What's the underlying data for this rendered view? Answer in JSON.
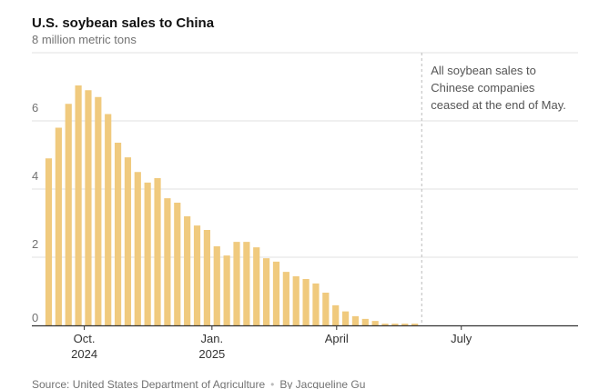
{
  "chart_data": {
    "type": "bar",
    "title": "U.S. soybean sales to China",
    "ylabel": "million metric tons",
    "ylim": [
      0,
      8
    ],
    "yticks": [
      {
        "value": 0,
        "label": "0"
      },
      {
        "value": 2,
        "label": "2"
      },
      {
        "value": 4,
        "label": "4"
      },
      {
        "value": 6,
        "label": "6"
      },
      {
        "value": 8,
        "label": "8 million metric tons"
      }
    ],
    "x_unit": "week index",
    "xlim": [
      -1.7,
      53.5
    ],
    "xticks": [
      {
        "value": 3.6,
        "label": [
          "Oct.",
          "2024"
        ]
      },
      {
        "value": 16.5,
        "label": [
          "Jan.",
          "2025"
        ]
      },
      {
        "value": 29.1,
        "label": [
          "April"
        ]
      },
      {
        "value": 41.7,
        "label": [
          "July"
        ]
      }
    ],
    "values": [
      4.9,
      5.8,
      6.5,
      7.04,
      6.9,
      6.7,
      6.2,
      5.36,
      4.93,
      4.5,
      4.19,
      4.32,
      3.73,
      3.6,
      3.2,
      2.93,
      2.8,
      2.32,
      2.05,
      2.45,
      2.45,
      2.29,
      1.97,
      1.87,
      1.57,
      1.44,
      1.36,
      1.23,
      0.96,
      0.59,
      0.41,
      0.27,
      0.19,
      0.13,
      0.05,
      0.05,
      0.05,
      0.05
    ],
    "annotation": {
      "x": 37.7,
      "lines": [
        "All soybean sales to",
        "Chinese companies",
        "ceased at the end of May."
      ]
    },
    "grid": true,
    "bar_color": "#f0ca7e"
  },
  "footer": {
    "source": "Source: United States Department of Agriculture",
    "separator": "•",
    "byline": "By Jacqueline Gu"
  }
}
